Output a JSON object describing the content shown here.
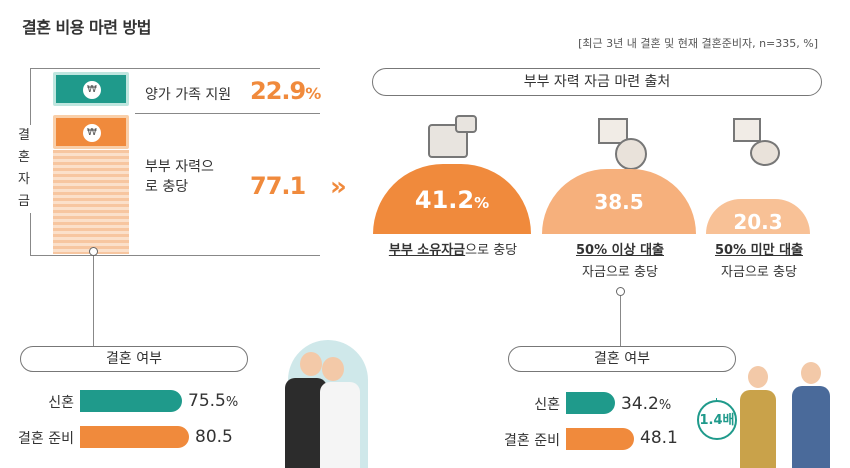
{
  "title": "결혼 비용 마련 방법",
  "source": "[최근 3년 내 결혼 및 현재 결혼준비자, n=335, %]",
  "funds_label": "결혼 자금",
  "currency_symbol": "₩",
  "colors": {
    "teal": "#1f9a8b",
    "orange": "#f08a3c",
    "light_orange": "#f6b07c",
    "lighter_orange": "#f8c196"
  },
  "chart_data": [
    {
      "type": "table",
      "title": "결혼 자금",
      "rows": [
        {
          "label": "양가 가족 지원",
          "value": "22.9",
          "unit": "%"
        },
        {
          "label": "부부 자력으로 충당",
          "value": "77.1",
          "unit": ""
        }
      ]
    },
    {
      "type": "bar",
      "title": "부부 자력 자금 마련 출처",
      "categories": [
        {
          "bold": "부부 소유자금",
          "rest": "으로 충당"
        },
        {
          "bold": "50% 이상 대출",
          "rest": "자금으로 충당"
        },
        {
          "bold": "50% 미만 대출",
          "rest": "자금으로 충당"
        }
      ],
      "values": [
        41.2,
        38.5,
        20.3
      ],
      "value_labels": [
        "41.2",
        "38.5",
        "20.3"
      ],
      "unit": "%"
    },
    {
      "type": "bar",
      "title": "결혼 여부",
      "categories": [
        "신혼",
        "결혼 준비"
      ],
      "values": [
        75.5,
        80.5
      ],
      "value_labels": [
        "75.5",
        "80.5"
      ],
      "unit": "%"
    },
    {
      "type": "bar",
      "title": "결혼 여부",
      "categories": [
        "신혼",
        "결혼 준비"
      ],
      "values": [
        34.2,
        48.1
      ],
      "value_labels": [
        "34.2",
        "48.1"
      ],
      "unit": "%",
      "annotation": "1.4배"
    }
  ]
}
